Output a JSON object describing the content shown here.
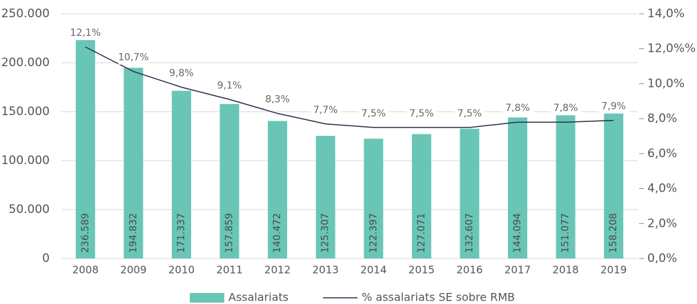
{
  "chart_data": {
    "type": "bar-line",
    "categories": [
      "2008",
      "2009",
      "2010",
      "2011",
      "2012",
      "2013",
      "2014",
      "2015",
      "2016",
      "2017",
      "2018",
      "2019"
    ],
    "series": [
      {
        "name": "Assalariats",
        "type": "bar",
        "color": "#69c6b7",
        "axis": "y",
        "values": [
          236589,
          194832,
          171337,
          157859,
          140472,
          125307,
          122397,
          127071,
          132607,
          144094,
          151077,
          158208
        ],
        "value_labels": [
          "236.589",
          "194.832",
          "171.337",
          "157.859",
          "140.472",
          "125.307",
          "122.397",
          "127.071",
          "132.607",
          "144.094",
          "151.077",
          "158.208"
        ]
      },
      {
        "name": "% assalariats SE sobre RMB",
        "type": "line",
        "color": "#2b2f4a",
        "axis": "y2",
        "values": [
          12.1,
          10.7,
          9.8,
          9.1,
          8.3,
          7.7,
          7.5,
          7.5,
          7.5,
          7.8,
          7.8,
          7.9
        ],
        "value_labels": [
          "12,1%",
          "10,7%",
          "9,8%",
          "9,1%",
          "8,3%",
          "7,7%",
          "7,5%",
          "7,5%",
          "7,5%",
          "7,8%",
          "7,8%",
          "7,9%"
        ]
      }
    ],
    "ylim": [
      0,
      250000
    ],
    "yticks": [
      0,
      {
        "value": 50000,
        "label": "50.000"
      },
      {
        "value": 100000,
        "label": "100.000"
      },
      {
        "value": 150000,
        "label": "150.000"
      },
      {
        "value": 200000,
        "label": "200.000"
      },
      {
        "value": 250000,
        "label": "250.000"
      }
    ],
    "y2lim": [
      0,
      14
    ],
    "y2ticks": [
      {
        "value": 0,
        "label": "0,0%"
      },
      {
        "value": 2,
        "label": "2,0%"
      },
      {
        "value": 4,
        "label": "4,0%"
      },
      {
        "value": 6,
        "label": "6,0%"
      },
      {
        "value": 8,
        "label": "8,0%"
      },
      {
        "value": 10,
        "label": "10,0%"
      },
      {
        "value": 12,
        "label": "12,0%%"
      },
      {
        "value": 14,
        "label": "14,0%"
      }
    ],
    "grid": true,
    "legend": "bottom"
  }
}
